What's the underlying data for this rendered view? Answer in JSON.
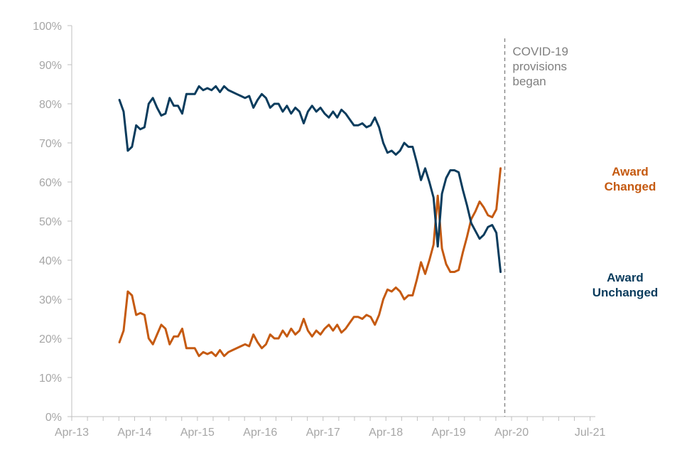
{
  "chart_data": {
    "type": "line",
    "title": "",
    "xlabel": "",
    "ylabel": "",
    "ylim": [
      0,
      100
    ],
    "y_ticks": [
      0,
      10,
      20,
      30,
      40,
      50,
      60,
      70,
      80,
      90,
      100
    ],
    "y_tick_labels": [
      "0%",
      "10%",
      "20%",
      "30%",
      "40%",
      "50%",
      "60%",
      "70%",
      "80%",
      "90%",
      "100%"
    ],
    "x_range": [
      0,
      100
    ],
    "x_tick_months": [
      0,
      12,
      24,
      36,
      48,
      60,
      72,
      84,
      99
    ],
    "x_tick_labels": [
      "Apr-13",
      "Apr-14",
      "Apr-15",
      "Apr-16",
      "Apr-17",
      "Apr-18",
      "Apr-19",
      "Apr-20",
      "Jul-21"
    ],
    "x_unit": "months since Apr-13",
    "annotation": {
      "month": 82.7,
      "lines": [
        "COVID-19",
        "provisions",
        "began"
      ],
      "color": "#8c8c8c"
    },
    "series": [
      {
        "name": "Award Changed",
        "label_lines": [
          "Award",
          "Changed"
        ],
        "color": "#c55a11",
        "points": [
          [
            9.1,
            19
          ],
          [
            9.9,
            22
          ],
          [
            10.7,
            32
          ],
          [
            11.5,
            31
          ],
          [
            12.3,
            26
          ],
          [
            13.1,
            26.5
          ],
          [
            13.9,
            26
          ],
          [
            14.7,
            20
          ],
          [
            15.5,
            18.5
          ],
          [
            16.3,
            21
          ],
          [
            17.1,
            23.5
          ],
          [
            17.9,
            22.5
          ],
          [
            18.7,
            18.5
          ],
          [
            19.5,
            20.5
          ],
          [
            20.3,
            20.5
          ],
          [
            21.1,
            22.5
          ],
          [
            21.9,
            17.5
          ],
          [
            22.7,
            17.5
          ],
          [
            23.5,
            17.5
          ],
          [
            24.3,
            15.5
          ],
          [
            25.1,
            16.5
          ],
          [
            25.9,
            16
          ],
          [
            26.7,
            16.5
          ],
          [
            27.5,
            15.5
          ],
          [
            28.3,
            17
          ],
          [
            29.1,
            15.5
          ],
          [
            29.9,
            16.5
          ],
          [
            30.7,
            17
          ],
          [
            31.5,
            17.5
          ],
          [
            32.3,
            18
          ],
          [
            33.1,
            18.5
          ],
          [
            33.9,
            18
          ],
          [
            34.7,
            21
          ],
          [
            35.5,
            19
          ],
          [
            36.3,
            17.5
          ],
          [
            37.1,
            18.5
          ],
          [
            37.9,
            21
          ],
          [
            38.7,
            20
          ],
          [
            39.5,
            20
          ],
          [
            40.3,
            22
          ],
          [
            41.1,
            20.5
          ],
          [
            41.9,
            22.5
          ],
          [
            42.7,
            21
          ],
          [
            43.5,
            22
          ],
          [
            44.3,
            25
          ],
          [
            45.1,
            22
          ],
          [
            45.9,
            20.5
          ],
          [
            46.7,
            22
          ],
          [
            47.5,
            21
          ],
          [
            48.3,
            22.5
          ],
          [
            49.1,
            23.5
          ],
          [
            49.9,
            22
          ],
          [
            50.7,
            23.5
          ],
          [
            51.5,
            21.5
          ],
          [
            52.3,
            22.5
          ],
          [
            53.1,
            24
          ],
          [
            53.9,
            25.5
          ],
          [
            54.7,
            25.5
          ],
          [
            55.5,
            25
          ],
          [
            56.3,
            26
          ],
          [
            57.1,
            25.5
          ],
          [
            57.9,
            23.5
          ],
          [
            58.7,
            26
          ],
          [
            59.5,
            30
          ],
          [
            60.3,
            32.5
          ],
          [
            61.1,
            32
          ],
          [
            61.9,
            33
          ],
          [
            62.7,
            32
          ],
          [
            63.5,
            30
          ],
          [
            64.3,
            31
          ],
          [
            65.1,
            31
          ],
          [
            65.9,
            35
          ],
          [
            66.7,
            39.5
          ],
          [
            67.5,
            36.5
          ],
          [
            68.3,
            40
          ],
          [
            69.1,
            44
          ],
          [
            69.9,
            56.5
          ],
          [
            70.7,
            43
          ],
          [
            71.5,
            39
          ],
          [
            72.3,
            37
          ],
          [
            73.1,
            37
          ],
          [
            73.9,
            37.5
          ],
          [
            74.7,
            42
          ],
          [
            75.5,
            46
          ],
          [
            76.3,
            50.5
          ],
          [
            77.1,
            52.5
          ],
          [
            77.9,
            55
          ],
          [
            78.7,
            53.5
          ],
          [
            79.5,
            51.5
          ],
          [
            80.3,
            51
          ],
          [
            81.1,
            53
          ],
          [
            81.9,
            63.5
          ]
        ]
      },
      {
        "name": "Award Unchanged",
        "label_lines": [
          "Award",
          "Unchanged"
        ],
        "color": "#0b3c5d",
        "points": [
          [
            9.1,
            81
          ],
          [
            9.9,
            78
          ],
          [
            10.7,
            68
          ],
          [
            11.5,
            69
          ],
          [
            12.3,
            74.5
          ],
          [
            13.1,
            73.5
          ],
          [
            13.9,
            74
          ],
          [
            14.7,
            80
          ],
          [
            15.5,
            81.5
          ],
          [
            16.3,
            79
          ],
          [
            17.1,
            77
          ],
          [
            17.9,
            77.5
          ],
          [
            18.7,
            81.5
          ],
          [
            19.5,
            79.5
          ],
          [
            20.3,
            79.5
          ],
          [
            21.1,
            77.5
          ],
          [
            21.9,
            82.5
          ],
          [
            22.7,
            82.5
          ],
          [
            23.5,
            82.5
          ],
          [
            24.3,
            84.5
          ],
          [
            25.1,
            83.5
          ],
          [
            25.9,
            84
          ],
          [
            26.7,
            83.5
          ],
          [
            27.5,
            84.5
          ],
          [
            28.3,
            83
          ],
          [
            29.1,
            84.5
          ],
          [
            29.9,
            83.5
          ],
          [
            30.7,
            83
          ],
          [
            31.5,
            82.5
          ],
          [
            32.3,
            82
          ],
          [
            33.1,
            81.5
          ],
          [
            33.9,
            82
          ],
          [
            34.7,
            79
          ],
          [
            35.5,
            81
          ],
          [
            36.3,
            82.5
          ],
          [
            37.1,
            81.5
          ],
          [
            37.9,
            79
          ],
          [
            38.7,
            80
          ],
          [
            39.5,
            80
          ],
          [
            40.3,
            78
          ],
          [
            41.1,
            79.5
          ],
          [
            41.9,
            77.5
          ],
          [
            42.7,
            79
          ],
          [
            43.5,
            78
          ],
          [
            44.3,
            75
          ],
          [
            45.1,
            78
          ],
          [
            45.9,
            79.5
          ],
          [
            46.7,
            78
          ],
          [
            47.5,
            79
          ],
          [
            48.3,
            77.5
          ],
          [
            49.1,
            76.5
          ],
          [
            49.9,
            78
          ],
          [
            50.7,
            76.5
          ],
          [
            51.5,
            78.5
          ],
          [
            52.3,
            77.5
          ],
          [
            53.1,
            76
          ],
          [
            53.9,
            74.5
          ],
          [
            54.7,
            74.5
          ],
          [
            55.5,
            75
          ],
          [
            56.3,
            74
          ],
          [
            57.1,
            74.5
          ],
          [
            57.9,
            76.5
          ],
          [
            58.7,
            74
          ],
          [
            59.5,
            70
          ],
          [
            60.3,
            67.5
          ],
          [
            61.1,
            68
          ],
          [
            61.9,
            67
          ],
          [
            62.7,
            68
          ],
          [
            63.5,
            70
          ],
          [
            64.3,
            69
          ],
          [
            65.1,
            69
          ],
          [
            65.9,
            65
          ],
          [
            66.7,
            60.5
          ],
          [
            67.5,
            63.5
          ],
          [
            68.3,
            60
          ],
          [
            69.1,
            56
          ],
          [
            69.9,
            43.5
          ],
          [
            70.7,
            57
          ],
          [
            71.5,
            61
          ],
          [
            72.3,
            63
          ],
          [
            73.1,
            63
          ],
          [
            73.9,
            62.5
          ],
          [
            74.7,
            58
          ],
          [
            75.5,
            54
          ],
          [
            76.3,
            49.5
          ],
          [
            77.1,
            47.5
          ],
          [
            77.9,
            45.5
          ],
          [
            78.7,
            46.5
          ],
          [
            79.5,
            48.5
          ],
          [
            80.3,
            49
          ],
          [
            81.1,
            47
          ],
          [
            81.9,
            37
          ]
        ]
      }
    ]
  }
}
